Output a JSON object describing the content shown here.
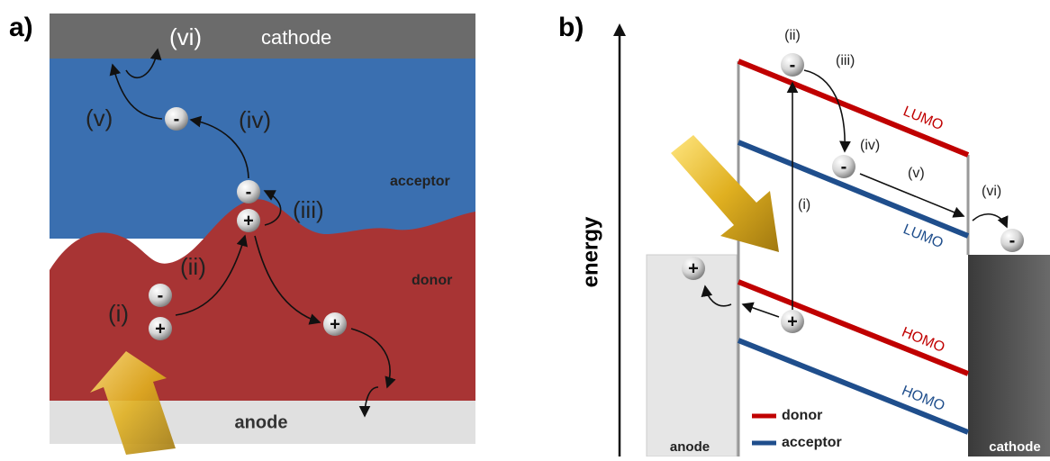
{
  "panel_a": {
    "label": "a)",
    "electrode_top": "cathode",
    "electrode_bottom": "anode",
    "region_top": "acceptor",
    "region_bottom": "donor",
    "steps": [
      "(i)",
      "(ii)",
      "(iii)",
      "(iv)",
      "(v)",
      "(vi)"
    ],
    "electron": "-",
    "hole": "+"
  },
  "panel_b": {
    "label": "b)",
    "axis_label": "energy",
    "steps": [
      "(i)",
      "(ii)",
      "(iii)",
      "(iv)",
      "(v)",
      "(vi)"
    ],
    "levels": [
      "LUMO",
      "LUMO",
      "HOMO",
      "HOMO"
    ],
    "legend": [
      "donor",
      "acceptor"
    ],
    "electrodes": [
      "anode",
      "cathode"
    ],
    "electron": "-",
    "hole": "+"
  }
}
